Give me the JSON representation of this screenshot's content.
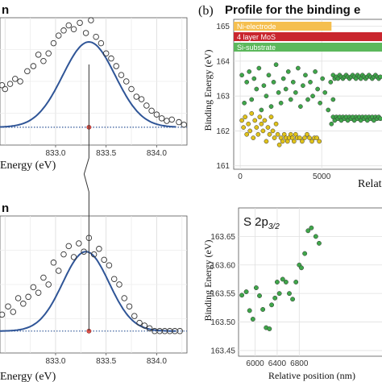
{
  "panel_b_label": "(b)",
  "panel_b_title": "Profile for the binding e",
  "chart_data": [
    {
      "id": "left-top",
      "type": "scatter",
      "title": "n",
      "xlabel": "Energy (eV)",
      "xlim": [
        832.45,
        834.3
      ],
      "ylim": [
        0,
        1.0
      ],
      "xticks": [
        833.0,
        833.5,
        834.0
      ],
      "xtick_labels": [
        "833.0",
        "833.5",
        "834.0"
      ],
      "peak_x": 833.33,
      "points": [
        [
          832.47,
          0.47
        ],
        [
          832.5,
          0.44
        ],
        [
          832.55,
          0.48
        ],
        [
          832.6,
          0.52
        ],
        [
          832.65,
          0.5
        ],
        [
          832.72,
          0.58
        ],
        [
          832.78,
          0.62
        ],
        [
          832.83,
          0.71
        ],
        [
          832.88,
          0.66
        ],
        [
          832.93,
          0.72
        ],
        [
          832.98,
          0.8
        ],
        [
          833.03,
          0.86
        ],
        [
          833.08,
          0.9
        ],
        [
          833.13,
          0.94
        ],
        [
          833.18,
          0.91
        ],
        [
          833.24,
          0.96
        ],
        [
          833.3,
          0.88
        ],
        [
          833.35,
          0.98
        ],
        [
          833.4,
          0.85
        ],
        [
          833.45,
          0.8
        ],
        [
          833.5,
          0.72
        ],
        [
          833.55,
          0.68
        ],
        [
          833.6,
          0.62
        ],
        [
          833.65,
          0.55
        ],
        [
          833.7,
          0.5
        ],
        [
          833.75,
          0.44
        ],
        [
          833.8,
          0.38
        ],
        [
          833.85,
          0.36
        ],
        [
          833.9,
          0.31
        ],
        [
          833.95,
          0.27
        ],
        [
          834.0,
          0.24
        ],
        [
          834.05,
          0.21
        ],
        [
          834.1,
          0.19
        ],
        [
          834.15,
          0.2
        ],
        [
          834.22,
          0.18
        ],
        [
          834.27,
          0.16
        ]
      ],
      "fit": {
        "baseline": 0.14,
        "amplitude": 0.67,
        "center": 833.33,
        "sigma": 0.26
      }
    },
    {
      "id": "left-bottom",
      "type": "scatter",
      "title": "n",
      "xlabel": "Energy (eV)",
      "xlim": [
        832.45,
        834.3
      ],
      "ylim": [
        0,
        1.0
      ],
      "xticks": [
        833.0,
        833.5,
        834.0
      ],
      "xtick_labels": [
        "833.0",
        "833.5",
        "834.0"
      ],
      "peak_x": 833.33,
      "points": [
        [
          832.47,
          0.28
        ],
        [
          832.53,
          0.34
        ],
        [
          832.58,
          0.3
        ],
        [
          832.63,
          0.4
        ],
        [
          832.68,
          0.36
        ],
        [
          832.73,
          0.41
        ],
        [
          832.78,
          0.48
        ],
        [
          832.83,
          0.44
        ],
        [
          832.88,
          0.55
        ],
        [
          832.93,
          0.5
        ],
        [
          832.98,
          0.66
        ],
        [
          833.03,
          0.6
        ],
        [
          833.08,
          0.72
        ],
        [
          833.13,
          0.78
        ],
        [
          833.18,
          0.7
        ],
        [
          833.23,
          0.8
        ],
        [
          833.28,
          0.74
        ],
        [
          833.33,
          0.84
        ],
        [
          833.38,
          0.72
        ],
        [
          833.43,
          0.76
        ],
        [
          833.48,
          0.68
        ],
        [
          833.53,
          0.64
        ],
        [
          833.58,
          0.54
        ],
        [
          833.63,
          0.5
        ],
        [
          833.68,
          0.4
        ],
        [
          833.73,
          0.34
        ],
        [
          833.78,
          0.27
        ],
        [
          833.83,
          0.22
        ],
        [
          833.88,
          0.2
        ],
        [
          833.93,
          0.18
        ],
        [
          833.98,
          0.16
        ],
        [
          834.03,
          0.16
        ],
        [
          834.08,
          0.16
        ],
        [
          834.13,
          0.16
        ],
        [
          834.18,
          0.16
        ],
        [
          834.23,
          0.16
        ]
      ],
      "fit": {
        "baseline": 0.16,
        "amplitude": 0.58,
        "center": 833.3,
        "sigma": 0.23
      }
    },
    {
      "id": "right-top",
      "type": "scatter",
      "xlabel": "Relat",
      "ylabel": "Binding Energy (eV)",
      "xlim": [
        -400,
        8700
      ],
      "ylim": [
        160.9,
        165.2
      ],
      "xticks": [
        0,
        5000
      ],
      "xtick_labels": [
        "0",
        "5000"
      ],
      "yticks": [
        161,
        162,
        163,
        164,
        165
      ],
      "ytick_labels": [
        "161",
        "162",
        "163",
        "164",
        "165"
      ],
      "bands": [
        {
          "label": "Ni-electrode",
          "color": "#f5bf4f",
          "x0": -400,
          "x1": 5600
        },
        {
          "label": "4 layer MoS",
          "color": "#c9262e",
          "x0": -400,
          "x1": 8700
        },
        {
          "label": "Si-substrate",
          "color": "#5cb85c",
          "x0": -400,
          "x1": 8700
        }
      ],
      "series": [
        {
          "color": "#3fa64a",
          "points": [
            [
              100,
              163.6
            ],
            [
              250,
              162.8
            ],
            [
              400,
              163.4
            ],
            [
              550,
              163.7
            ],
            [
              700,
              162.9
            ],
            [
              850,
              163.5
            ],
            [
              1000,
              163.2
            ],
            [
              1150,
              163.8
            ],
            [
              1300,
              162.6
            ],
            [
              1450,
              163.3
            ],
            [
              1600,
              163.0
            ],
            [
              1750,
              163.6
            ],
            [
              1900,
              162.7
            ],
            [
              2050,
              163.4
            ],
            [
              2200,
              163.9
            ],
            [
              2350,
              163.1
            ],
            [
              2500,
              162.8
            ],
            [
              2650,
              163.5
            ],
            [
              2800,
              163.2
            ],
            [
              2950,
              163.7
            ],
            [
              3100,
              162.9
            ],
            [
              3250,
              163.4
            ],
            [
              3400,
              163.1
            ],
            [
              3550,
              163.8
            ],
            [
              3700,
              162.7
            ],
            [
              3850,
              163.3
            ],
            [
              4000,
              163.6
            ],
            [
              4150,
              162.9
            ],
            [
              4300,
              163.4
            ],
            [
              4450,
              163.0
            ],
            [
              4600,
              163.7
            ],
            [
              4750,
              163.2
            ],
            [
              4900,
              162.8
            ],
            [
              5050,
              163.5
            ],
            [
              5200,
              163.1
            ],
            [
              5400,
              162.6
            ],
            [
              5550,
              163.4
            ],
            [
              5700,
              162.9
            ]
          ]
        },
        {
          "color": "#e0c21a",
          "points": [
            [
              100,
              162.3
            ],
            [
              200,
              162.1
            ],
            [
              300,
              162.4
            ],
            [
              400,
              161.9
            ],
            [
              500,
              162.2
            ],
            [
              600,
              162.0
            ],
            [
              700,
              162.5
            ],
            [
              800,
              161.8
            ],
            [
              900,
              162.3
            ],
            [
              1000,
              162.1
            ],
            [
              1100,
              161.9
            ],
            [
              1200,
              162.4
            ],
            [
              1300,
              162.2
            ],
            [
              1400,
              162.0
            ],
            [
              1500,
              162.3
            ],
            [
              1600,
              161.7
            ],
            [
              1700,
              162.1
            ],
            [
              1800,
              161.9
            ],
            [
              1900,
              162.4
            ],
            [
              2000,
              162.0
            ],
            [
              2100,
              161.8
            ],
            [
              2200,
              162.2
            ],
            [
              2300,
              161.9
            ],
            [
              2400,
              161.6
            ],
            [
              2500,
              161.8
            ],
            [
              2600,
              161.7
            ],
            [
              2700,
              161.9
            ],
            [
              2800,
              161.8
            ],
            [
              2900,
              161.7
            ],
            [
              3000,
              161.8
            ],
            [
              3100,
              161.9
            ],
            [
              3200,
              161.8
            ],
            [
              3300,
              161.7
            ],
            [
              3400,
              161.9
            ],
            [
              3500,
              161.8
            ],
            [
              3650,
              161.8
            ],
            [
              3800,
              161.7
            ],
            [
              3950,
              161.8
            ],
            [
              4100,
              161.9
            ],
            [
              4250,
              161.8
            ],
            [
              4400,
              161.7
            ],
            [
              4550,
              161.8
            ],
            [
              4700,
              161.8
            ],
            [
              4850,
              161.7
            ]
          ]
        },
        {
          "color": "#3fa64a",
          "points": [
            [
              5700,
              163.6
            ],
            [
              5800,
              163.5
            ],
            [
              5900,
              163.55
            ],
            [
              6000,
              163.5
            ],
            [
              6100,
              163.6
            ],
            [
              6200,
              163.55
            ],
            [
              6300,
              163.5
            ],
            [
              6400,
              163.55
            ],
            [
              6500,
              163.6
            ],
            [
              6600,
              163.55
            ],
            [
              6700,
              163.5
            ],
            [
              6800,
              163.55
            ],
            [
              6900,
              163.6
            ],
            [
              7000,
              163.55
            ],
            [
              7100,
              163.5
            ],
            [
              7200,
              163.6
            ],
            [
              7300,
              163.55
            ],
            [
              7400,
              163.5
            ],
            [
              7500,
              163.6
            ],
            [
              7600,
              163.55
            ],
            [
              7700,
              163.5
            ],
            [
              7800,
              163.55
            ],
            [
              7900,
              163.6
            ],
            [
              8000,
              163.55
            ],
            [
              8100,
              163.5
            ],
            [
              8200,
              163.55
            ],
            [
              8300,
              163.6
            ],
            [
              8400,
              163.55
            ],
            [
              8500,
              163.5
            ],
            [
              8600,
              163.55
            ]
          ]
        },
        {
          "color": "#3fa64a",
          "points": [
            [
              5600,
              162.2
            ],
            [
              5700,
              162.4
            ],
            [
              5800,
              162.3
            ],
            [
              5900,
              162.4
            ],
            [
              6000,
              162.35
            ],
            [
              6100,
              162.4
            ],
            [
              6200,
              162.3
            ],
            [
              6300,
              162.4
            ],
            [
              6400,
              162.35
            ],
            [
              6500,
              162.4
            ],
            [
              6600,
              162.3
            ],
            [
              6700,
              162.4
            ],
            [
              6800,
              162.35
            ],
            [
              6900,
              162.4
            ],
            [
              7000,
              162.3
            ],
            [
              7100,
              162.4
            ],
            [
              7200,
              162.35
            ],
            [
              7300,
              162.4
            ],
            [
              7400,
              162.3
            ],
            [
              7500,
              162.4
            ],
            [
              7600,
              162.35
            ],
            [
              7700,
              162.4
            ],
            [
              7800,
              162.3
            ],
            [
              7900,
              162.4
            ],
            [
              8000,
              162.35
            ],
            [
              8100,
              162.4
            ],
            [
              8200,
              162.3
            ],
            [
              8300,
              162.4
            ],
            [
              8400,
              162.35
            ],
            [
              8500,
              162.4
            ],
            [
              8600,
              162.35
            ]
          ]
        }
      ]
    },
    {
      "id": "right-bottom",
      "type": "scatter",
      "annotation_main": "S 2p",
      "annotation_sub": "3/2",
      "xlabel": "Relative position (nm)",
      "ylabel": "Binding Energy (eV)",
      "xlim": [
        5700,
        8300
      ],
      "ylim": [
        163.44,
        163.7
      ],
      "xticks": [
        6000,
        6400,
        6800
      ],
      "xtick_labels": [
        "6000",
        "6400",
        "6800"
      ],
      "yticks": [
        163.45,
        163.5,
        163.55,
        163.6,
        163.65
      ],
      "ytick_labels": [
        "163.45",
        "163.50",
        "163.55",
        "163.60",
        "163.65"
      ],
      "marker_color": "#3fa64a",
      "points": [
        [
          5760,
          163.547
        ],
        [
          5840,
          163.553
        ],
        [
          5900,
          163.52
        ],
        [
          5960,
          163.505
        ],
        [
          6020,
          163.56
        ],
        [
          6080,
          163.546
        ],
        [
          6140,
          163.522
        ],
        [
          6200,
          163.49
        ],
        [
          6260,
          163.488
        ],
        [
          6300,
          163.53
        ],
        [
          6360,
          163.542
        ],
        [
          6400,
          163.57
        ],
        [
          6440,
          163.55
        ],
        [
          6500,
          163.575
        ],
        [
          6560,
          163.57
        ],
        [
          6620,
          163.55
        ],
        [
          6680,
          163.54
        ],
        [
          6740,
          163.57
        ],
        [
          6800,
          163.6
        ],
        [
          6840,
          163.595
        ],
        [
          6900,
          163.62
        ],
        [
          6960,
          163.66
        ],
        [
          7020,
          163.665
        ],
        [
          7100,
          163.65
        ],
        [
          7160,
          163.638
        ]
      ]
    }
  ]
}
